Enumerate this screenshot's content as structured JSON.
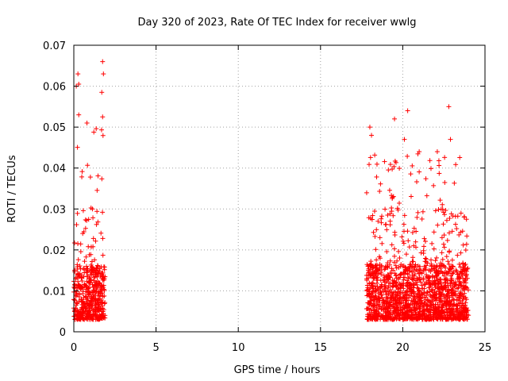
{
  "chart_data": {
    "type": "scatter",
    "title": "Day 320 of 2023, Rate Of TEC Index for receiver wwlg",
    "xlabel": "GPS time / hours",
    "ylabel": "ROTI / TECUs",
    "xlim": [
      0,
      25
    ],
    "ylim": [
      0,
      0.07
    ],
    "x_ticks": [
      "0",
      "5",
      "10",
      "15",
      "20",
      "25"
    ],
    "y_ticks": [
      "0",
      "0.01",
      "0.02",
      "0.03",
      "0.04",
      "0.05",
      "0.06",
      "0.07"
    ],
    "grid": true,
    "marker": "plus",
    "colors": {
      "points": "#ff0000"
    },
    "series": [
      {
        "segments": [
          {
            "x_range": [
              0.0,
              1.9
            ],
            "y_typical": [
              0.003,
              0.03
            ],
            "y_max": 0.066
          },
          {
            "x_range": [
              17.8,
              24.0
            ],
            "y_typical": [
              0.003,
              0.03
            ],
            "y_max": 0.055
          }
        ],
        "notable_points": [
          {
            "x": 0.15,
            "y": 0.06
          },
          {
            "x": 0.25,
            "y": 0.063
          },
          {
            "x": 0.3,
            "y": 0.0605
          },
          {
            "x": 1.75,
            "y": 0.066
          },
          {
            "x": 1.8,
            "y": 0.063
          },
          {
            "x": 1.7,
            "y": 0.0585
          },
          {
            "x": 0.3,
            "y": 0.053
          },
          {
            "x": 1.75,
            "y": 0.0525
          },
          {
            "x": 0.8,
            "y": 0.051
          },
          {
            "x": 22.8,
            "y": 0.055
          },
          {
            "x": 20.3,
            "y": 0.054
          },
          {
            "x": 19.5,
            "y": 0.052
          },
          {
            "x": 18.0,
            "y": 0.05
          },
          {
            "x": 22.9,
            "y": 0.047
          },
          {
            "x": 20.1,
            "y": 0.047
          },
          {
            "x": 21.0,
            "y": 0.044
          },
          {
            "x": 22.1,
            "y": 0.044
          },
          {
            "x": 18.1,
            "y": 0.048
          }
        ]
      }
    ]
  }
}
